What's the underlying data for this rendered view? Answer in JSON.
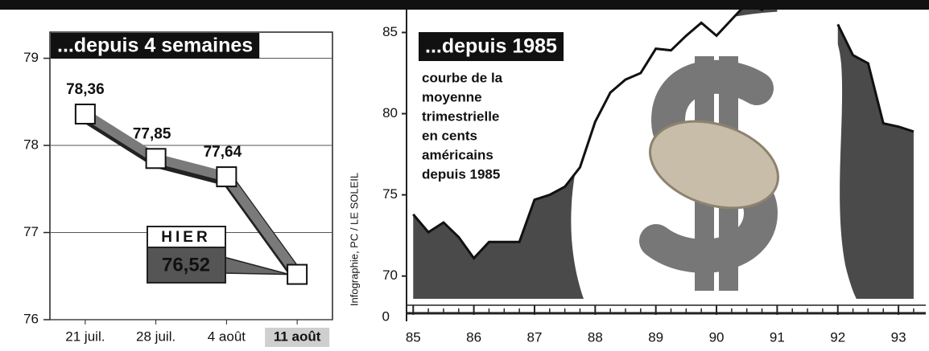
{
  "chart_data": [
    {
      "type": "line",
      "title": "...depuis 4 semaines",
      "categories": [
        "21 juil.",
        "28 juil.",
        "4 août",
        "11 août"
      ],
      "values": [
        78.36,
        77.85,
        77.64,
        76.52
      ],
      "value_labels": [
        "78,36",
        "77,85",
        "77,64",
        "76,52"
      ],
      "annotation": "HIER",
      "highlight_index": 3,
      "ylim": [
        76,
        79.3
      ],
      "yticks": [
        76,
        77,
        78,
        79
      ],
      "grid": true,
      "color": "#7a7a7a"
    },
    {
      "type": "area",
      "title": "...depuis 1985",
      "annotation_lines": [
        "courbe de la",
        "moyenne",
        "trimestrielle",
        "en cents",
        "américains",
        "depuis 1985"
      ],
      "source": "Infographie, PC / LE SOLEIL",
      "x": [
        85,
        85.25,
        85.5,
        85.75,
        86,
        86.25,
        86.5,
        86.75,
        87,
        87.25,
        87.5,
        87.75,
        88,
        88.25,
        88.5,
        88.75,
        89,
        89.25,
        89.5,
        89.75,
        90,
        90.25,
        90.5,
        90.75,
        91,
        91.25,
        91.5,
        91.75,
        92,
        92.25,
        92.5,
        92.75,
        93,
        93.25
      ],
      "values": [
        73.8,
        72.7,
        73.3,
        72.4,
        71.1,
        72.1,
        72.1,
        72.1,
        74.7,
        75.0,
        75.5,
        76.7,
        79.5,
        81.3,
        82.1,
        82.5,
        84.0,
        83.9,
        84.8,
        85.6,
        84.8,
        85.8,
        86.8,
        86.4,
        87.0,
        null,
        null,
        null,
        85.5,
        83.6,
        83.1,
        79.4,
        79.2,
        78.9
      ],
      "xlim": [
        84.93,
        93.45
      ],
      "xticks": [
        85,
        86,
        87,
        88,
        89,
        90,
        91,
        92,
        93
      ],
      "ylim": [
        68.6,
        87
      ],
      "yticks": [
        70,
        75,
        80,
        85
      ],
      "axis_break_tick": 0,
      "color": "#4a4a4a"
    }
  ]
}
